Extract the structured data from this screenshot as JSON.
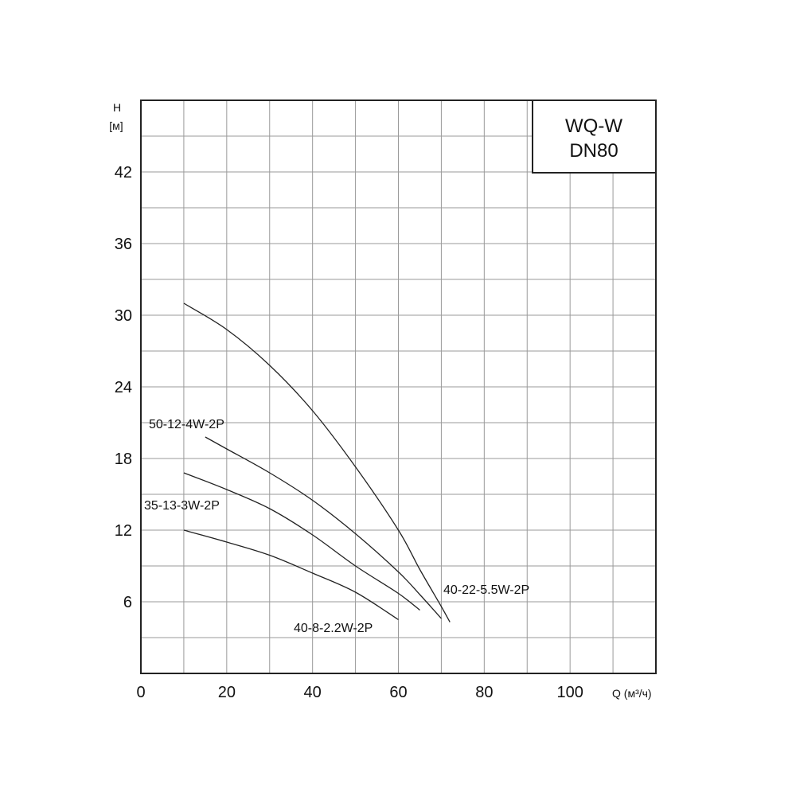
{
  "chart_data": {
    "type": "line",
    "title_box": [
      "WQ-W",
      "DN80"
    ],
    "ylabel": [
      "H",
      "[м]"
    ],
    "xlabel": "Q (м³/ч)",
    "xlim": [
      0,
      120
    ],
    "ylim": [
      0,
      48
    ],
    "x_grid_step": 10,
    "y_grid_step": 3,
    "x_ticks": [
      0,
      20,
      40,
      60,
      80,
      100
    ],
    "y_ticks": [
      6,
      12,
      18,
      24,
      30,
      36,
      42
    ],
    "grid": true,
    "series": [
      {
        "name": "40-22-5.5W-2P",
        "points": [
          [
            10,
            31.0
          ],
          [
            20,
            28.8
          ],
          [
            30,
            25.8
          ],
          [
            40,
            22.0
          ],
          [
            50,
            17.3
          ],
          [
            60,
            12.0
          ],
          [
            65,
            8.7
          ],
          [
            70,
            5.6
          ],
          [
            72,
            4.3
          ]
        ]
      },
      {
        "name": "50-12-4W-2P",
        "points": [
          [
            15,
            19.8
          ],
          [
            20,
            18.8
          ],
          [
            30,
            16.8
          ],
          [
            40,
            14.5
          ],
          [
            50,
            11.7
          ],
          [
            60,
            8.5
          ],
          [
            65,
            6.6
          ],
          [
            70,
            4.6
          ]
        ]
      },
      {
        "name": "35-13-3W-2P",
        "points": [
          [
            10,
            16.8
          ],
          [
            20,
            15.4
          ],
          [
            30,
            13.8
          ],
          [
            40,
            11.6
          ],
          [
            50,
            9.0
          ],
          [
            60,
            6.7
          ],
          [
            65,
            5.3
          ]
        ]
      },
      {
        "name": "40-8-2.2W-2P",
        "points": [
          [
            10,
            12.0
          ],
          [
            20,
            11.0
          ],
          [
            30,
            9.9
          ],
          [
            40,
            8.4
          ],
          [
            50,
            6.8
          ],
          [
            60,
            4.5
          ]
        ]
      }
    ]
  }
}
